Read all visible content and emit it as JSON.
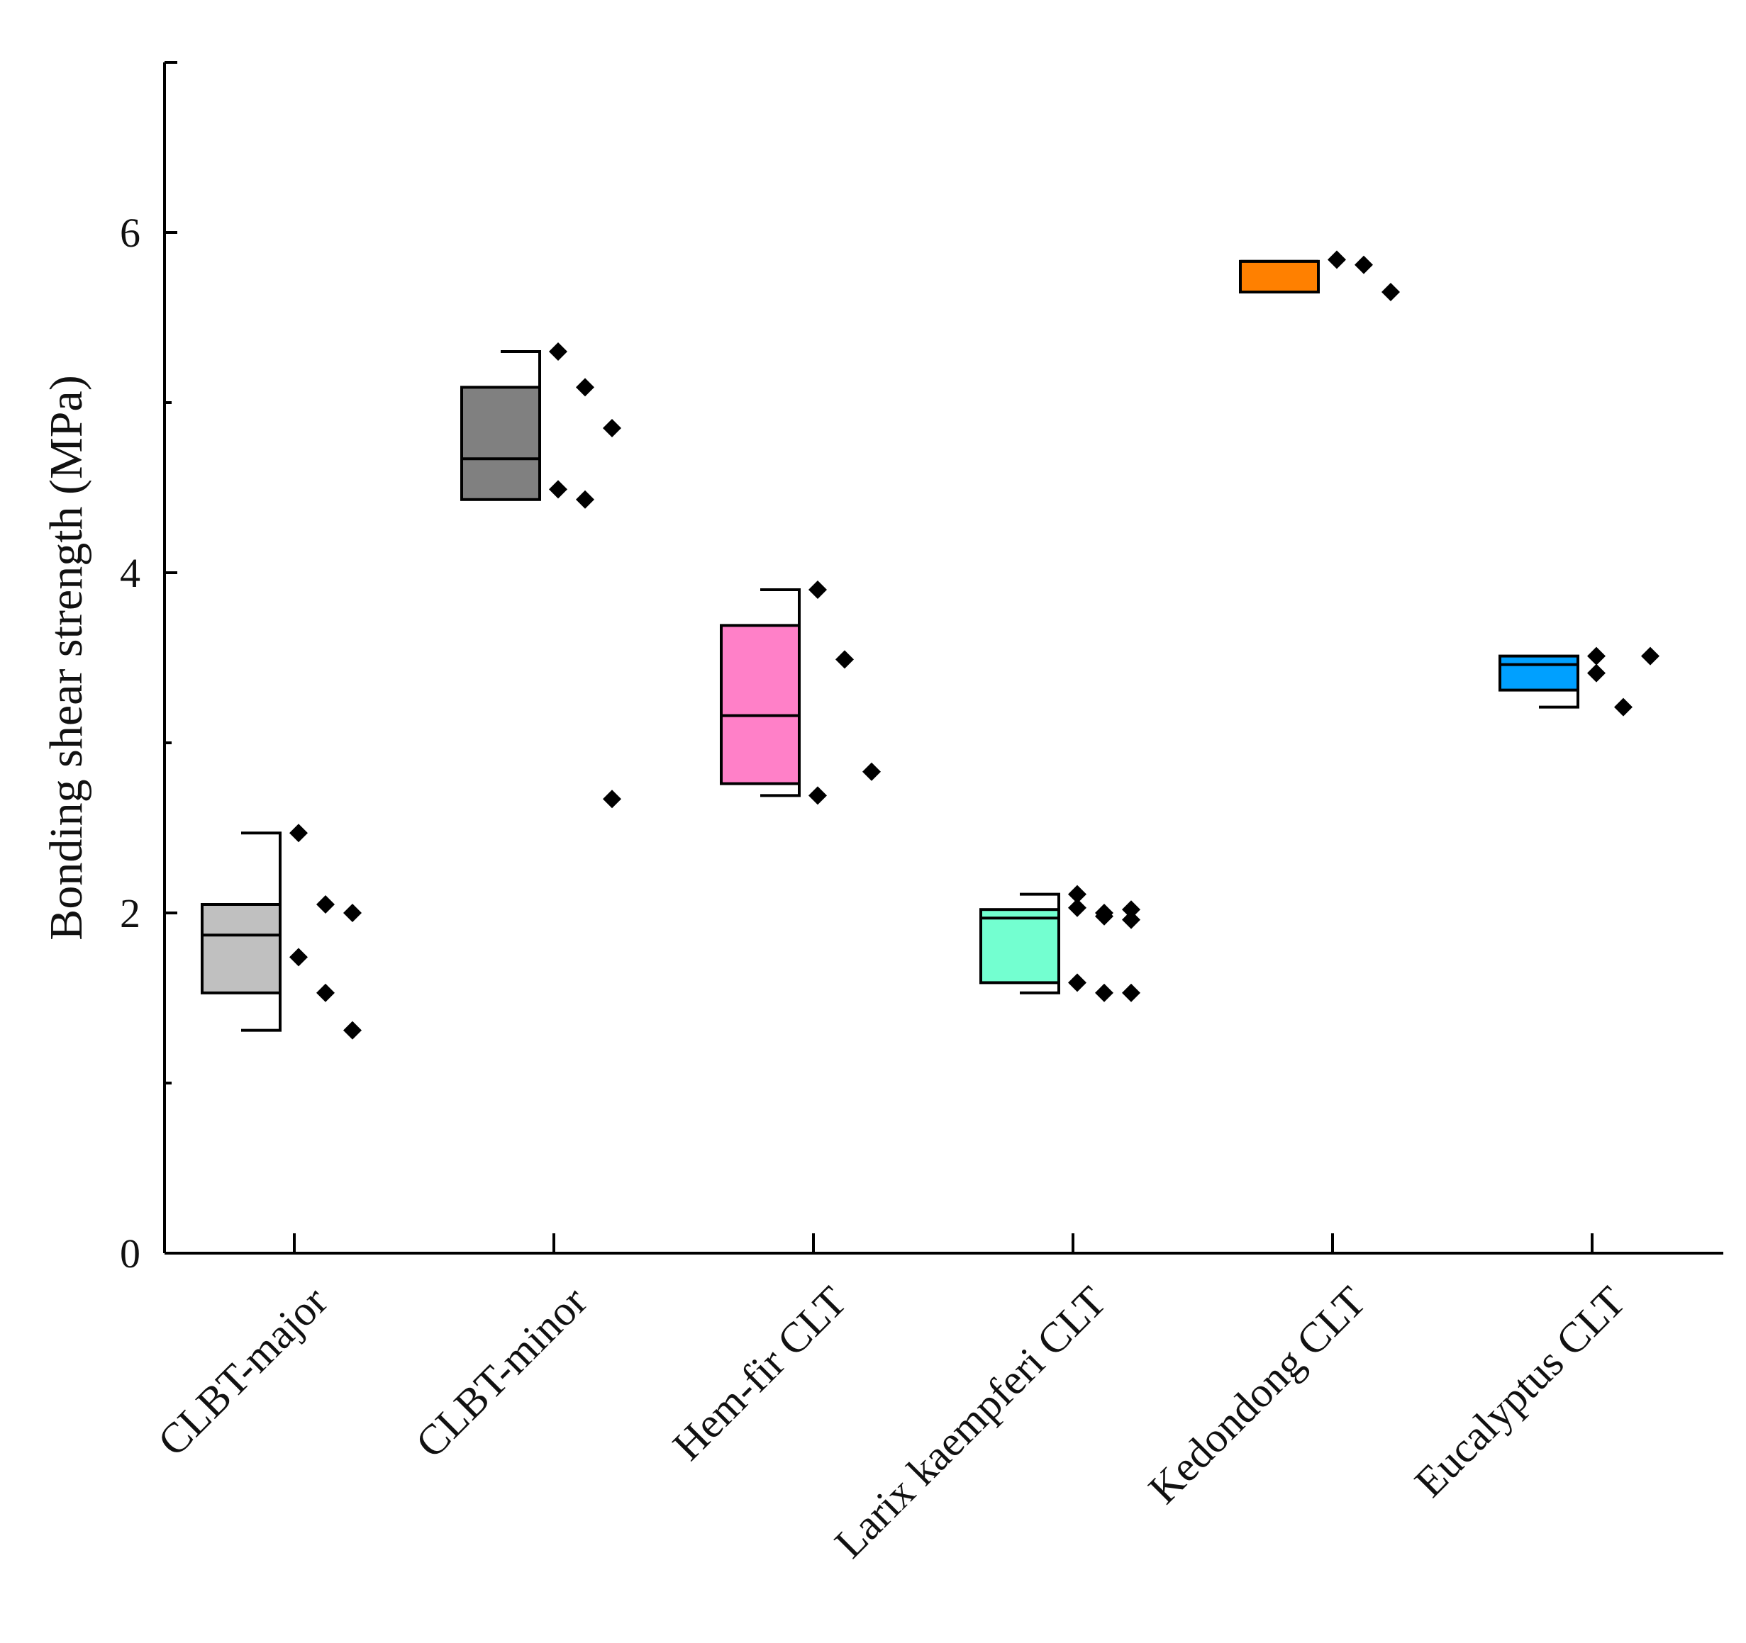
{
  "chart_data": {
    "type": "box",
    "ylabel": "Bonding shear strength (MPa)",
    "xlabel": "",
    "ylim": [
      0,
      7
    ],
    "yticks": [
      0,
      2,
      4,
      6
    ],
    "yminor": [
      1,
      3,
      5
    ],
    "categories": [
      "CLBT-major",
      "CLBT-minor",
      "Hem-fir CLT",
      "Larix kaempferi CLT",
      "Kedondong CLT",
      "Eucalyptus CLT"
    ],
    "boxes": [
      {
        "name": "CLBT-major",
        "color": "#c0c0c0",
        "q1": 1.53,
        "median": 1.87,
        "q3": 2.05,
        "whisker_low": 1.31,
        "whisker_high": 2.47,
        "points": [
          2.47,
          2.05,
          2.0,
          1.74,
          1.53,
          1.31
        ]
      },
      {
        "name": "CLBT-minor",
        "color": "#808080",
        "q1": 4.43,
        "median": 4.67,
        "q3": 5.09,
        "whisker_low": 4.43,
        "whisker_high": 5.3,
        "points": [
          5.3,
          5.09,
          4.85,
          4.49,
          4.43,
          2.67
        ]
      },
      {
        "name": "Hem-fir CLT",
        "color": "#ff80c8",
        "q1": 2.76,
        "median": 3.16,
        "q3": 3.69,
        "whisker_low": 2.69,
        "whisker_high": 3.9,
        "points": [
          3.9,
          3.49,
          2.83,
          2.69
        ]
      },
      {
        "name": "Larix kaempferi CLT",
        "color": "#73ffd0",
        "q1": 1.59,
        "median": 1.97,
        "q3": 2.02,
        "whisker_low": 1.53,
        "whisker_high": 2.11,
        "points": [
          2.11,
          2.0,
          2.02,
          2.03,
          1.98,
          1.96,
          1.59,
          1.53,
          1.53
        ]
      },
      {
        "name": "Kedondong CLT",
        "color": "#ff8000",
        "q1": 5.65,
        "median": 5.83,
        "q3": 5.83,
        "whisker_low": 5.65,
        "whisker_high": 5.83,
        "points": [
          5.84,
          5.81,
          5.65
        ]
      },
      {
        "name": "Eucalyptus CLT",
        "color": "#00a0ff",
        "q1": 3.31,
        "median": 3.46,
        "q3": 3.51,
        "whisker_low": 3.21,
        "whisker_high": 3.51,
        "points": [
          3.51,
          3.21,
          3.51,
          3.41
        ]
      }
    ]
  }
}
